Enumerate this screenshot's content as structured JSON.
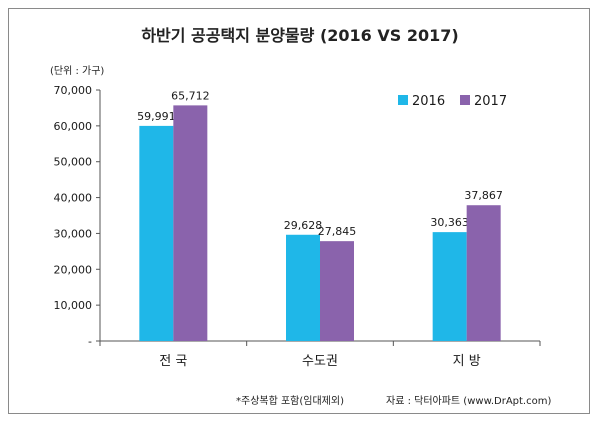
{
  "chart_data": {
    "type": "bar",
    "title": "하반기 공공택지 분양물량 (2016 VS 2017)",
    "unit_label": "(단위 : 가구)",
    "categories": [
      "전 국",
      "수도권",
      "지 방"
    ],
    "series": [
      {
        "name": "2016",
        "color": "#1fb7e8",
        "values": [
          59991,
          29628,
          30363
        ],
        "labels": [
          "59,991",
          "29,628",
          "30,363"
        ]
      },
      {
        "name": "2017",
        "color": "#8a63ac",
        "values": [
          65712,
          27845,
          37867
        ],
        "labels": [
          "65,712",
          "27,845",
          "37,867"
        ]
      }
    ],
    "ylim": [
      0,
      70000
    ],
    "yticks": [
      0,
      10000,
      20000,
      30000,
      40000,
      50000,
      60000,
      70000
    ],
    "ytick_labels": [
      "-",
      "10,000",
      "20,000",
      "30,000",
      "40,000",
      "50,000",
      "60,000",
      "70,000"
    ],
    "grid": false,
    "legend_position": "top-right"
  },
  "footnotes": {
    "left": "*주상복합 포함(임대제외)",
    "right": "자료 : 닥터아파트 (www.DrApt.com)"
  }
}
